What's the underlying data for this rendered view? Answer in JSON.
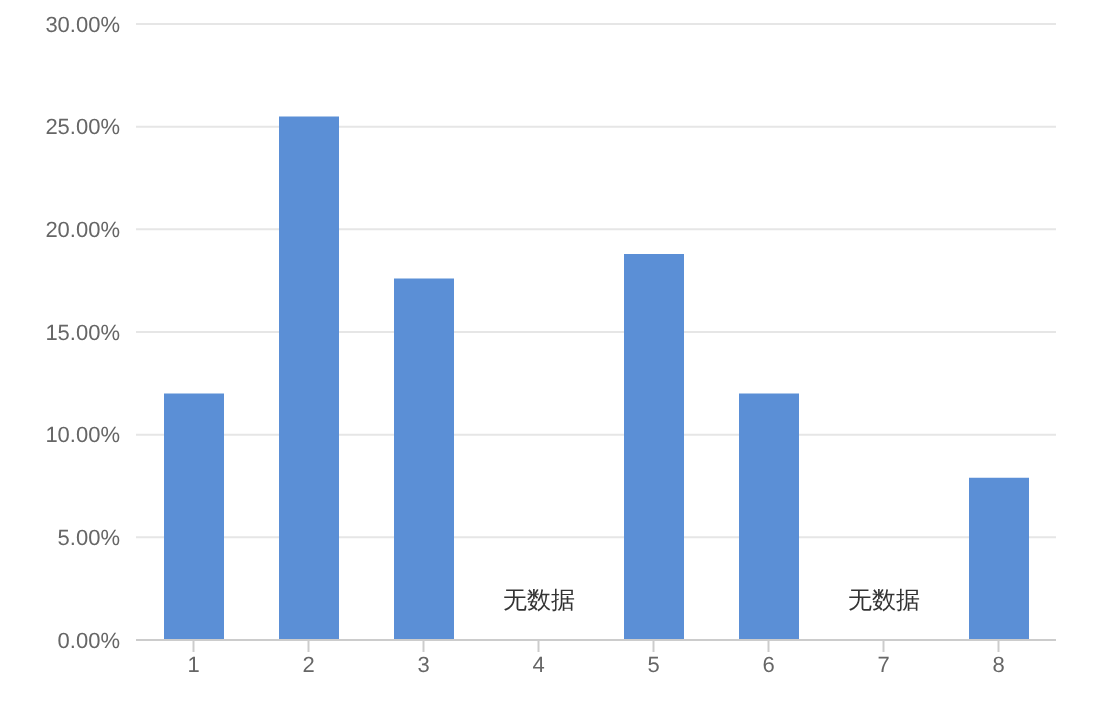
{
  "chart_data": {
    "type": "bar",
    "categories": [
      "1",
      "2",
      "3",
      "4",
      "5",
      "6",
      "7",
      "8"
    ],
    "values": [
      12,
      25.5,
      17.6,
      null,
      18.8,
      12,
      null,
      7.9
    ],
    "color": "#5b8fd6",
    "ylim": [
      0,
      30
    ],
    "yticks": [
      {
        "value": 0,
        "label": "0.00%"
      },
      {
        "value": 5,
        "label": "5.00%"
      },
      {
        "value": 10,
        "label": "10.00%"
      },
      {
        "value": 15,
        "label": "15.00%"
      },
      {
        "value": 20,
        "label": "20.00%"
      },
      {
        "value": 25,
        "label": "25.00%"
      },
      {
        "value": 30,
        "label": "30.00%"
      }
    ],
    "grid": "y",
    "annotations": [
      "无数据",
      "无数据"
    ]
  }
}
